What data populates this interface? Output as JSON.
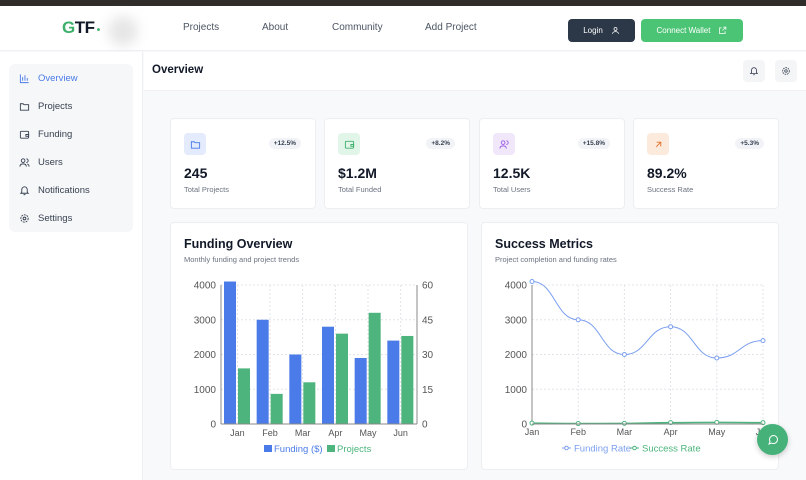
{
  "logo": {
    "text": "GTF",
    "dot": "•"
  },
  "nav": [
    "Projects",
    "About",
    "Community",
    "Add Project"
  ],
  "header": {
    "login": "Login",
    "connect": "Connect Wallet"
  },
  "sidebar": {
    "items": [
      {
        "label": "Overview",
        "icon": "bar-chart-icon",
        "active": true
      },
      {
        "label": "Projects",
        "icon": "folder-icon"
      },
      {
        "label": "Funding",
        "icon": "wallet-icon"
      },
      {
        "label": "Users",
        "icon": "users-icon"
      },
      {
        "label": "Notifications",
        "icon": "bell-icon"
      },
      {
        "label": "Settings",
        "icon": "gear-icon"
      }
    ]
  },
  "page": {
    "title": "Overview"
  },
  "stats": [
    {
      "value": "245",
      "label": "Total Projects",
      "change": "+12.5%",
      "icon": "folder-icon",
      "color": "#4a7be8",
      "bg": "#e3ebfc"
    },
    {
      "value": "$1.2M",
      "label": "Total Funded",
      "change": "+8.2%",
      "icon": "wallet-icon",
      "color": "#3db06b",
      "bg": "#e2f5e9"
    },
    {
      "value": "12.5K",
      "label": "Total Users",
      "change": "+15.8%",
      "icon": "users-icon",
      "color": "#9b5de5",
      "bg": "#f0e7fb"
    },
    {
      "value": "89.2%",
      "label": "Success Rate",
      "change": "+5.3%",
      "icon": "arrow-up-right-icon",
      "color": "#e0722f",
      "bg": "#fcebdc"
    }
  ],
  "chart_data": [
    {
      "type": "bar",
      "title": "Funding Overview",
      "subtitle": "Monthly funding and project trends",
      "categories": [
        "Jan",
        "Feb",
        "Mar",
        "Apr",
        "May",
        "Jun"
      ],
      "series": [
        {
          "name": "Funding ($)",
          "values": [
            4100,
            3000,
            2000,
            2800,
            1900,
            2400
          ],
          "color": "#4a7be8",
          "axis": "left"
        },
        {
          "name": "Projects",
          "values": [
            24,
            13,
            18,
            39,
            48,
            38
          ],
          "color": "#4cb47c",
          "axis": "right"
        }
      ],
      "ylim": [
        0,
        4000
      ],
      "yticks": [
        0,
        1000,
        2000,
        3000,
        4000
      ],
      "y2lim": [
        0,
        60
      ],
      "y2ticks": [
        0,
        15,
        30,
        45,
        60
      ],
      "grid": true,
      "legend": "bottom"
    },
    {
      "type": "line",
      "title": "Success Metrics",
      "subtitle": "Project completion and funding rates",
      "categories": [
        "Jan",
        "Feb",
        "Mar",
        "Apr",
        "May",
        "Jun"
      ],
      "series": [
        {
          "name": "Funding Rate",
          "values": [
            4100,
            3000,
            2000,
            2800,
            1900,
            2400
          ],
          "color": "#7b9ff0"
        },
        {
          "name": "Success Rate",
          "values": [
            24,
            13,
            18,
            39,
            48,
            38
          ],
          "color": "#4cb47c"
        }
      ],
      "ylim": [
        0,
        4000
      ],
      "yticks": [
        0,
        1000,
        2000,
        3000,
        4000
      ],
      "grid": true,
      "legend": "bottom"
    }
  ]
}
